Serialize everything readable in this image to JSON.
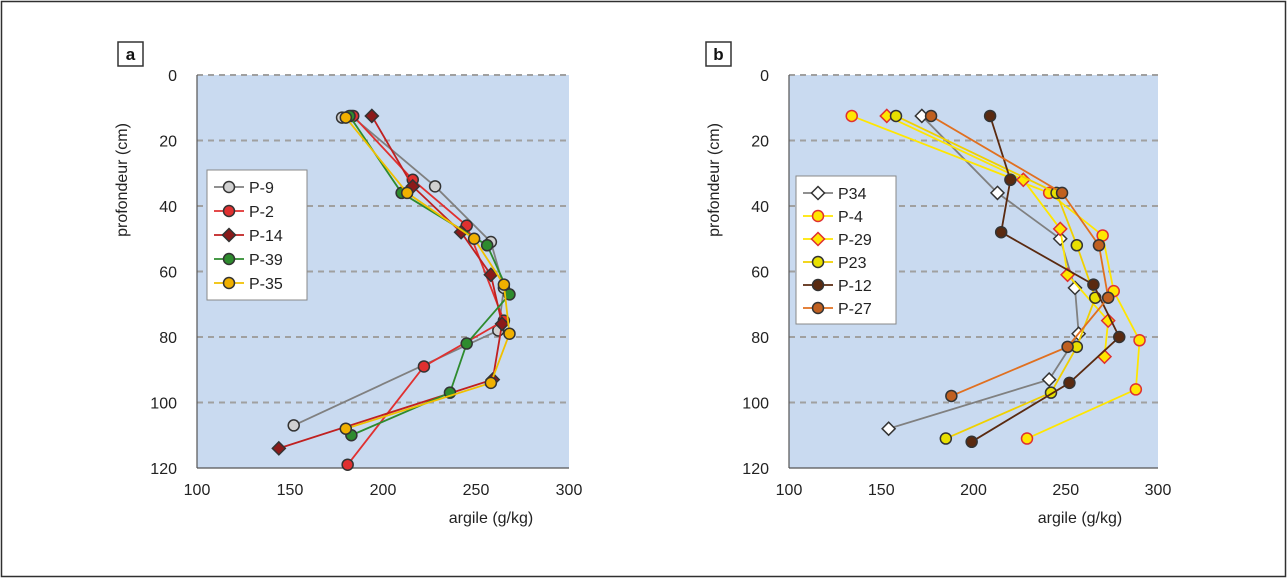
{
  "chart_data": [
    {
      "type": "line",
      "panel_label": "a",
      "xlabel": "argile (g/kg)",
      "ylabel": "profondeur (cm)",
      "xlim": [
        100,
        300
      ],
      "ylim": [
        0,
        120
      ],
      "y_inverted": true,
      "xticks": [
        "100",
        "150",
        "200",
        "250",
        "300"
      ],
      "yticks": [
        "0",
        "20",
        "40",
        "60",
        "80",
        "100",
        "120"
      ],
      "grid": "horizontal dashed",
      "legend_position": "left",
      "series": [
        {
          "name": "P-9",
          "color": "#808080",
          "fill": "#d0d0d0",
          "marker": "circle",
          "points": [
            [
              178,
              13
            ],
            [
              183,
              12.5
            ],
            [
              228,
              34
            ],
            [
              258,
              51
            ],
            [
              265,
              65
            ],
            [
              262,
              78
            ],
            [
              152,
              107
            ]
          ]
        },
        {
          "name": "P-2",
          "color": "#e03030",
          "fill": "#e03030",
          "marker": "circle",
          "points": [
            [
              184,
              12.5
            ],
            [
              216,
              32
            ],
            [
              245,
              46
            ],
            [
              265,
              75
            ],
            [
              222,
              89
            ],
            [
              181,
              119
            ]
          ]
        },
        {
          "name": "P-14",
          "color": "#c02020",
          "fill": "#8b1a1a",
          "marker": "diamond",
          "points": [
            [
              194,
              12.5
            ],
            [
              216,
              34
            ],
            [
              242,
              48
            ],
            [
              258,
              61
            ],
            [
              264,
              76
            ],
            [
              259,
              93
            ],
            [
              144,
              114
            ]
          ]
        },
        {
          "name": "P-39",
          "color": "#2e8b2e",
          "fill": "#2e8b2e",
          "marker": "circle",
          "points": [
            [
              182,
              12.5
            ],
            [
              210,
              36
            ],
            [
              256,
              52
            ],
            [
              268,
              67
            ],
            [
              245,
              82
            ],
            [
              236,
              97
            ],
            [
              183,
              110
            ]
          ]
        },
        {
          "name": "P-35",
          "color": "#f0c000",
          "fill": "#f0b000",
          "marker": "circle",
          "points": [
            [
              180,
              13
            ],
            [
              213,
              36
            ],
            [
              249,
              50
            ],
            [
              265,
              64
            ],
            [
              268,
              79
            ],
            [
              258,
              94
            ],
            [
              180,
              108
            ]
          ]
        }
      ]
    },
    {
      "type": "line",
      "panel_label": "b",
      "xlabel": "argile (g/kg)",
      "ylabel": "profondeur (cm)",
      "xlim": [
        100,
        300
      ],
      "ylim": [
        0,
        120
      ],
      "y_inverted": true,
      "xticks": [
        "100",
        "150",
        "200",
        "250",
        "300"
      ],
      "yticks": [
        "0",
        "20",
        "40",
        "60",
        "80",
        "100",
        "120"
      ],
      "grid": "horizontal dashed",
      "legend_position": "left",
      "series": [
        {
          "name": "P34",
          "color": "#808080",
          "fill": "#ffffff",
          "marker": "diamond",
          "points": [
            [
              172,
              12.5
            ],
            [
              213,
              36
            ],
            [
              247,
              50
            ],
            [
              255,
              65
            ],
            [
              257,
              79
            ],
            [
              241,
              93
            ],
            [
              154,
              108
            ]
          ]
        },
        {
          "name": "P-4",
          "color": "#ffe600",
          "fill": "#ffe600",
          "stroke": "#e03030",
          "marker": "circle",
          "points": [
            [
              134,
              12.5
            ],
            [
              241,
              36
            ],
            [
              270,
              49
            ],
            [
              276,
              66
            ],
            [
              290,
              81
            ],
            [
              288,
              96
            ],
            [
              229,
              111
            ]
          ]
        },
        {
          "name": "P-29",
          "color": "#ffe600",
          "fill": "#ffe600",
          "stroke": "#e03030",
          "marker": "diamond",
          "points": [
            [
              153,
              12.5
            ],
            [
              227,
              32
            ],
            [
              247,
              47
            ],
            [
              251,
              61
            ],
            [
              273,
              75
            ],
            [
              271,
              86
            ]
          ]
        },
        {
          "name": "P23",
          "color": "#f0d000",
          "fill": "#e8e000",
          "marker": "circle",
          "points": [
            [
              158,
              12.5
            ],
            [
              245,
              36
            ],
            [
              256,
              52
            ],
            [
              266,
              68
            ],
            [
              256,
              83
            ],
            [
              242,
              97
            ],
            [
              185,
              111
            ]
          ]
        },
        {
          "name": "P-12",
          "color": "#5a2a10",
          "fill": "#5a2a10",
          "marker": "circle",
          "points": [
            [
              209,
              12.5
            ],
            [
              220,
              32
            ],
            [
              215,
              48
            ],
            [
              265,
              64
            ],
            [
              279,
              80
            ],
            [
              252,
              94
            ],
            [
              199,
              112
            ]
          ]
        },
        {
          "name": "P-27",
          "color": "#e07020",
          "fill": "#c06020",
          "marker": "circle",
          "points": [
            [
              177,
              12.5
            ],
            [
              248,
              36
            ],
            [
              268,
              52
            ],
            [
              273,
              68
            ],
            [
              251,
              83
            ],
            [
              188,
              98
            ]
          ]
        }
      ]
    }
  ]
}
